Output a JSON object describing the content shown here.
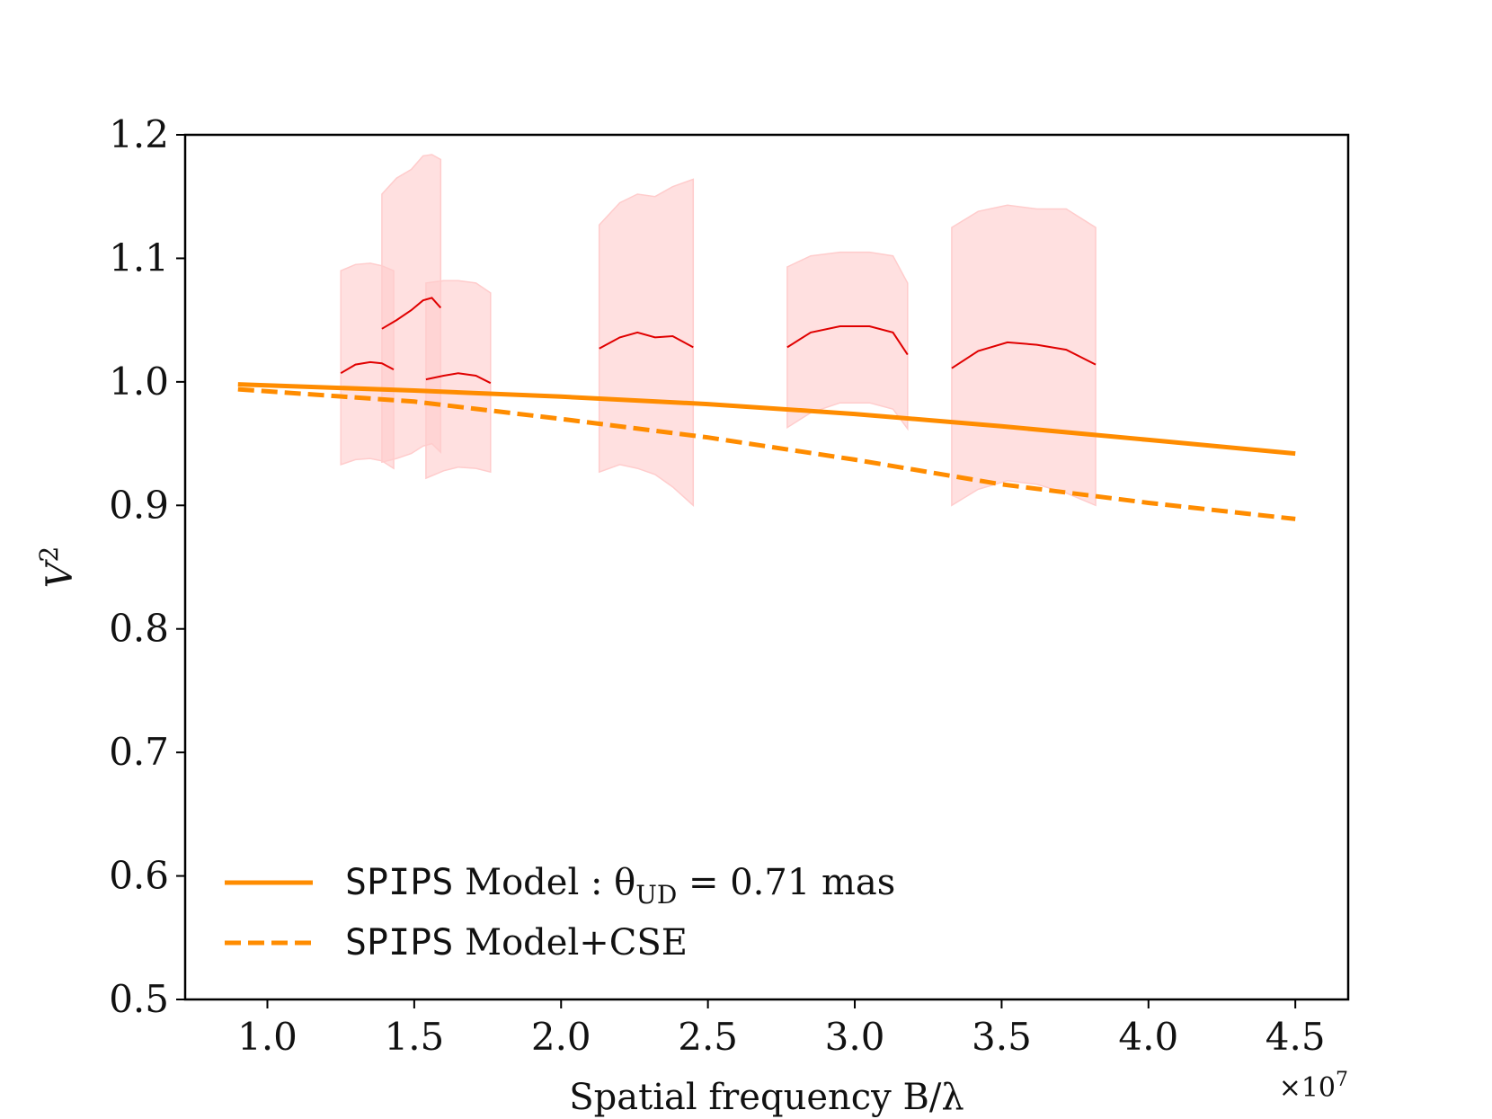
{
  "chart_data": {
    "type": "line",
    "title": "",
    "xlabel": "Spatial frequency B/λ",
    "ylabel_base": "V",
    "ylabel_sup": "2",
    "x_offset_text": "×10",
    "x_offset_exp": "7",
    "xlim": [
      0.72,
      4.68
    ],
    "ylim": [
      0.5,
      1.2
    ],
    "xticks": [
      1.0,
      1.5,
      2.0,
      2.5,
      3.0,
      3.5,
      4.0,
      4.5
    ],
    "xtick_labels": [
      "1.0",
      "1.5",
      "2.0",
      "2.5",
      "3.0",
      "3.5",
      "4.0",
      "4.5"
    ],
    "yticks": [
      0.5,
      0.6,
      0.7,
      0.8,
      0.9,
      1.0,
      1.1,
      1.2
    ],
    "ytick_labels": [
      "0.5",
      "0.6",
      "0.7",
      "0.8",
      "0.9",
      "1.0",
      "1.1",
      "1.2"
    ],
    "grid": false,
    "legend_position": "lower-left",
    "colors": {
      "model": "#ff8c00",
      "data_line": "#e00000",
      "data_band": "#ffcccc"
    },
    "models": [
      {
        "name_mono": "SPIPS",
        "name_rest": " Model : θ",
        "name_sub": "UD",
        "name_tail": " = 0.71 mas",
        "style": "solid",
        "x": [
          0.9,
          1.5,
          2.0,
          2.5,
          3.0,
          3.5,
          4.0,
          4.5
        ],
        "y": [
          0.998,
          0.993,
          0.988,
          0.982,
          0.974,
          0.964,
          0.953,
          0.942
        ]
      },
      {
        "name_mono": "SPIPS",
        "name_rest": " Model+CSE",
        "style": "dashed",
        "x": [
          0.9,
          1.5,
          2.0,
          2.5,
          3.0,
          3.5,
          4.0,
          4.5
        ],
        "y": [
          0.994,
          0.984,
          0.97,
          0.955,
          0.937,
          0.917,
          0.902,
          0.889
        ]
      }
    ],
    "observations": [
      {
        "x": [
          1.25,
          1.3,
          1.35,
          1.39,
          1.43
        ],
        "y": [
          1.007,
          1.014,
          1.016,
          1.015,
          1.01
        ],
        "upper": [
          1.09,
          1.095,
          1.096,
          1.094,
          1.09
        ],
        "lower": [
          0.933,
          0.937,
          0.938,
          0.936,
          0.93
        ]
      },
      {
        "x": [
          1.39,
          1.44,
          1.49,
          1.53,
          1.56,
          1.59
        ],
        "y": [
          1.043,
          1.05,
          1.058,
          1.066,
          1.068,
          1.06
        ],
        "upper": [
          1.152,
          1.165,
          1.172,
          1.183,
          1.184,
          1.18
        ],
        "lower": [
          0.935,
          0.938,
          0.942,
          0.948,
          0.95,
          0.943
        ]
      },
      {
        "x": [
          1.54,
          1.6,
          1.65,
          1.71,
          1.76
        ],
        "y": [
          1.002,
          1.005,
          1.007,
          1.005,
          0.999
        ],
        "upper": [
          1.08,
          1.082,
          1.082,
          1.08,
          1.072
        ],
        "lower": [
          0.922,
          0.928,
          0.931,
          0.93,
          0.927
        ]
      },
      {
        "x": [
          2.13,
          2.2,
          2.26,
          2.32,
          2.38,
          2.45
        ],
        "y": [
          1.027,
          1.036,
          1.04,
          1.036,
          1.037,
          1.028
        ],
        "upper": [
          1.127,
          1.145,
          1.152,
          1.15,
          1.158,
          1.164
        ],
        "lower": [
          0.927,
          0.933,
          0.93,
          0.925,
          0.915,
          0.9
        ]
      },
      {
        "x": [
          2.77,
          2.85,
          2.95,
          3.05,
          3.13,
          3.18
        ],
        "y": [
          1.028,
          1.04,
          1.045,
          1.045,
          1.04,
          1.022
        ],
        "upper": [
          1.093,
          1.102,
          1.105,
          1.105,
          1.102,
          1.08
        ],
        "lower": [
          0.963,
          0.975,
          0.983,
          0.983,
          0.978,
          0.962
        ]
      },
      {
        "x": [
          3.33,
          3.42,
          3.52,
          3.62,
          3.72,
          3.82
        ],
        "y": [
          1.011,
          1.025,
          1.032,
          1.03,
          1.026,
          1.014
        ],
        "upper": [
          1.125,
          1.138,
          1.143,
          1.14,
          1.14,
          1.125
        ],
        "lower": [
          0.9,
          0.913,
          0.92,
          0.917,
          0.91,
          0.9
        ]
      }
    ]
  }
}
